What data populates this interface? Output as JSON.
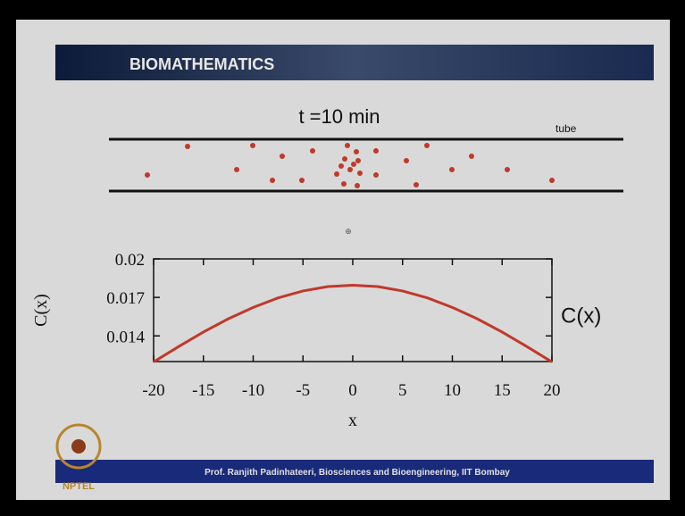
{
  "header": {
    "title": "BIOMATHEMATICS"
  },
  "figure": {
    "title": "t =10 min",
    "tube_label": "tube"
  },
  "chart_data": {
    "type": "line",
    "y_label": "C(x)",
    "x_label": "x",
    "annotation": "C(x)",
    "x": [
      -20,
      -17.5,
      -15,
      -12.5,
      -10,
      -7.5,
      -5,
      -2.5,
      0,
      2.5,
      5,
      7.5,
      10,
      12.5,
      15,
      17.5,
      20
    ],
    "series": [
      {
        "name": "C(x)",
        "color": "#c0392b",
        "values": [
          0.01197,
          0.01316,
          0.0143,
          0.01533,
          0.01622,
          0.01696,
          0.0175,
          0.01784,
          0.01795,
          0.01784,
          0.0175,
          0.01696,
          0.01622,
          0.01533,
          0.0143,
          0.01316,
          0.01197
        ]
      }
    ],
    "xlim": [
      -20,
      20
    ],
    "ylim": [
      0.012,
      0.02
    ],
    "xticks": [
      -20,
      -15,
      -10,
      -5,
      0,
      5,
      10,
      15,
      20
    ],
    "yticks": [
      0.014,
      0.017,
      0.02
    ],
    "grid": false
  },
  "footer": {
    "text": "Prof. Ranjith Padinhateeri, Biosciences and Bioengineering, IIT Bombay",
    "logo": "NPTEL"
  }
}
